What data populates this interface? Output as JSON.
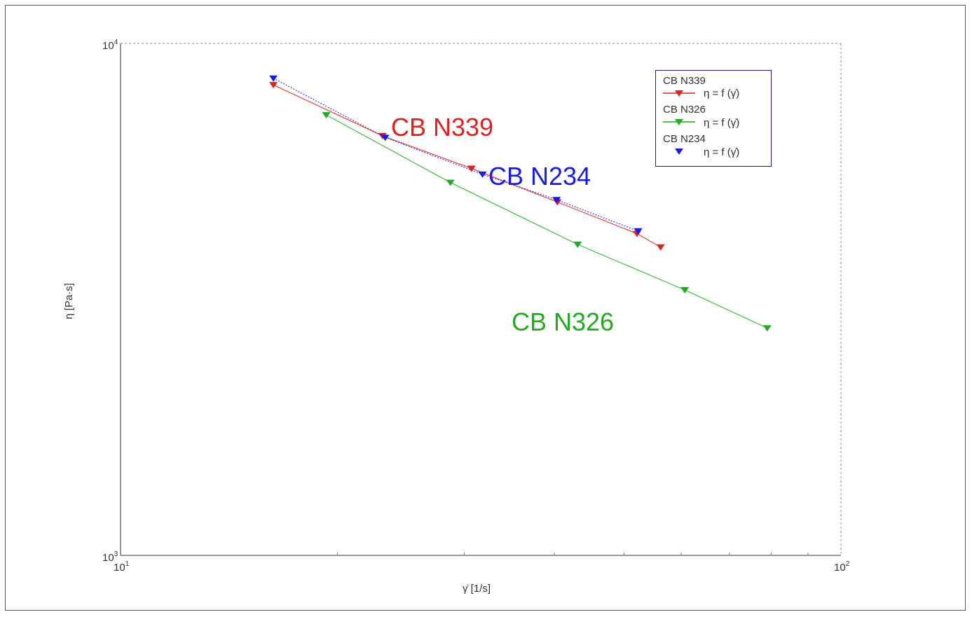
{
  "chart_data": {
    "type": "line",
    "xlabel": "γ̇ [1/s]",
    "ylabel": "η [Pa·s]",
    "x_scale": "log",
    "y_scale": "log",
    "xlim": [
      10,
      100
    ],
    "ylim": [
      1000,
      10000
    ],
    "x_tick_labels": [
      {
        "value": 10,
        "base": "10",
        "exp": "1"
      },
      {
        "value": 100,
        "base": "10",
        "exp": "2"
      }
    ],
    "y_tick_labels": [
      {
        "value": 1000,
        "base": "10",
        "exp": "3"
      },
      {
        "value": 10000,
        "base": "10",
        "exp": "4"
      }
    ],
    "grid": false,
    "legend_position": "top-right",
    "series": [
      {
        "name": "CB N339",
        "legend_label": "η = f (γ̇)",
        "annotation": "CB N339",
        "color": "#dd2222",
        "points": [
          [
            16.3,
            8300
          ],
          [
            23.1,
            6600
          ],
          [
            30.7,
            5700
          ],
          [
            40.4,
            4900
          ],
          [
            52.1,
            4250
          ],
          [
            56.2,
            4000
          ]
        ]
      },
      {
        "name": "CB N326",
        "legend_label": "η = f (γ̇)",
        "annotation": "CB N326",
        "color": "#22aa22",
        "points": [
          [
            19.3,
            7250
          ],
          [
            28.7,
            5350
          ],
          [
            43.1,
            4050
          ],
          [
            60.7,
            3300
          ],
          [
            79.0,
            2780
          ]
        ]
      },
      {
        "name": "CB N234",
        "legend_label": "η = f (γ̇)",
        "annotation": "CB N234",
        "color": "#1a1ae0",
        "points": [
          [
            16.3,
            8550
          ],
          [
            23.3,
            6550
          ],
          [
            31.8,
            5550
          ],
          [
            40.3,
            4950
          ],
          [
            52.3,
            4300
          ]
        ]
      }
    ]
  }
}
